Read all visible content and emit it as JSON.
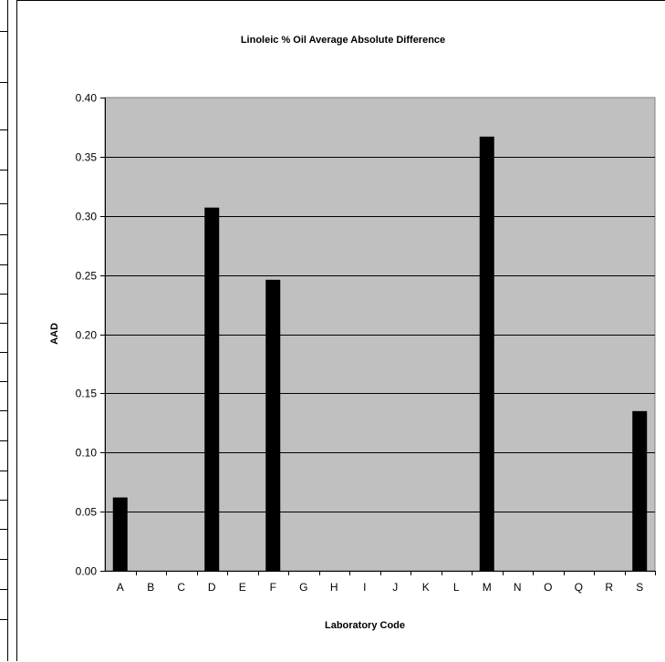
{
  "chart_data": {
    "type": "bar",
    "title": "Linoleic % Oil Average Absolute Difference",
    "xlabel": "Laboratory Code",
    "ylabel": "AAD",
    "categories": [
      "A",
      "B",
      "C",
      "D",
      "E",
      "F",
      "G",
      "H",
      "I",
      "J",
      "K",
      "L",
      "M",
      "N",
      "O",
      "Q",
      "R",
      "S"
    ],
    "values": [
      0.062,
      0,
      0,
      0.307,
      0,
      0.246,
      0,
      0,
      0,
      0,
      0,
      0,
      0.367,
      0,
      0,
      0,
      0,
      0.135
    ],
    "ylim": [
      0,
      0.4
    ],
    "yticks": [
      "0.00",
      "0.05",
      "0.10",
      "0.15",
      "0.20",
      "0.25",
      "0.30",
      "0.35",
      "0.40"
    ],
    "grid": true,
    "colors": {
      "plot_background": "#c0c0c0",
      "bar": "#000000",
      "grid": "#000000"
    }
  }
}
